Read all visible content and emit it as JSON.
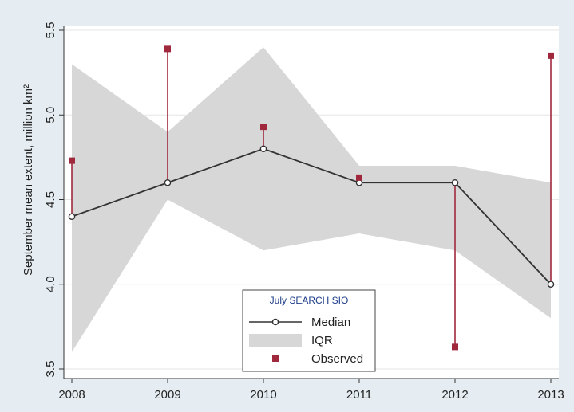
{
  "chart_data": {
    "type": "line",
    "title": "",
    "xlabel": "",
    "ylabel": "September mean extent, million km²",
    "x": [
      2008,
      2009,
      2010,
      2011,
      2012,
      2013
    ],
    "xticks": [
      "2008",
      "2009",
      "2010",
      "2011",
      "2012",
      "2013"
    ],
    "xlim": [
      2008,
      2013
    ],
    "yticks": [
      "3.5",
      "4.0",
      "4.5",
      "5.0",
      "5.5"
    ],
    "ylim": [
      3.5,
      5.5
    ],
    "grid": "horizontal",
    "series": [
      {
        "name": "Median",
        "kind": "line-markers",
        "color": "#333333",
        "values": [
          4.4,
          4.6,
          4.8,
          4.6,
          4.6,
          4.0
        ]
      },
      {
        "name": "IQR",
        "kind": "band",
        "color": "#d7d7d7",
        "lower": [
          3.6,
          4.5,
          4.2,
          4.3,
          4.2,
          3.8
        ],
        "upper": [
          5.3,
          4.9,
          5.4,
          4.7,
          4.7,
          4.6
        ]
      },
      {
        "name": "Observed",
        "kind": "square-markers-with-stems",
        "color": "#a0283c",
        "values": [
          4.73,
          5.39,
          4.93,
          4.63,
          3.63,
          5.35
        ]
      }
    ],
    "legend": {
      "title": "July SEARCH SIO",
      "position": "bottom-center",
      "entries": [
        "Median",
        "IQR",
        "Observed"
      ]
    }
  }
}
